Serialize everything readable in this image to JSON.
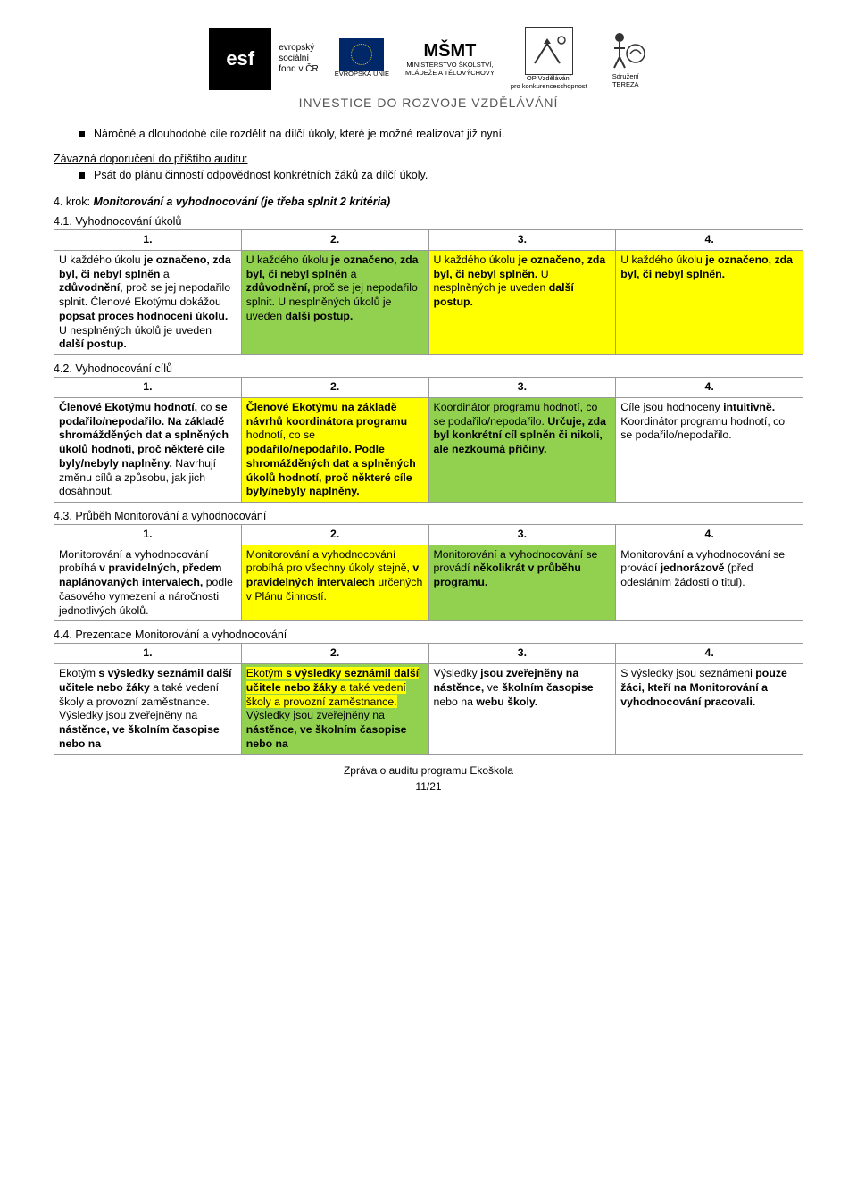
{
  "colors": {
    "green": "#92d050",
    "yellow": "#ffff00",
    "highlight_yellow": "#ffff00",
    "white": "#ffffff"
  },
  "logos": {
    "esf": {
      "mark": "esf",
      "caption": "evropský\nsociální\nfond v ČR"
    },
    "eu": {
      "caption": "EVROPSKÁ UNIE"
    },
    "msmt": {
      "mark": "MŠMT",
      "caption": "MINISTERSTVO ŠKOLSTVÍ,\nMLÁDEŽE A TĚLOVÝCHOVY"
    },
    "op": {
      "caption": "OP Vzdělávání\npro konkurenceschopnost"
    },
    "tereza": {
      "caption": "Sdružení\nTEREZA"
    }
  },
  "tagline": "INVESTICE DO ROZVOJE VZDĚLÁVÁNÍ",
  "bullet_intro": "Náročné a dlouhodobé cíle rozdělit na dílčí úkoly, které je možné realizovat již nyní.",
  "recommend_heading": "Závazná doporučení do příštího auditu:",
  "recommend_bullet": "Psát do plánu činností odpovědnost konkrétních žáků za dílčí úkoly.",
  "step4_heading": "4. krok: Monitorování a vyhodnocování (je třeba splnit 2 kritéria)",
  "tables": {
    "t41": {
      "heading": "4.1. Vyhodnocování úkolů",
      "headers": [
        "1.",
        "2.",
        "3.",
        "4."
      ],
      "row": [
        {
          "bg": "white",
          "html": "U každého úkolu <b>je označeno, zda byl, či nebyl splněn</b> a <b>zdůvodnění</b>, proč se jej nepodařilo splnit. Členové Ekotýmu dokážou <b>popsat proces hodnocení úkolu.</b> U nesplněných úkolů je uveden <b>další postup.</b>"
        },
        {
          "bg": "green",
          "html": "U každého úkolu <b>je označeno, zda byl, či nebyl splněn</b> a <b>zdůvodnění,</b> proč se jej nepodařilo splnit. U nesplněných úkolů je uveden <b>další postup.</b>"
        },
        {
          "bg": "yellow",
          "html": "U každého úkolu <b>je označeno, zda byl, či nebyl splněn.</b> U nesplněných je uveden <b>další postup.</b>"
        },
        {
          "bg": "yellow",
          "html": "U každého úkolu <b>je označeno, zda byl, či nebyl splněn.</b>"
        }
      ]
    },
    "t42": {
      "heading": "4.2. Vyhodnocování cílů",
      "headers": [
        "1.",
        "2.",
        "3.",
        "4."
      ],
      "row": [
        {
          "bg": "white",
          "html": "<b>Členové Ekotýmu hodnotí,</b> co <b>se podařilo/nepodařilo. Na základě shromážděných dat a splněných úkolů hodnotí, proč některé cíle byly/nebyly naplněny.</b> Navrhují změnu cílů a způsobu, jak jich dosáhnout."
        },
        {
          "bg": "yellow",
          "html": "<b>Členové Ekotýmu na základě návrhů koordinátora programu</b> hodnotí, co se <b>podařilo/nepodařilo. Podle shromážděných dat a splněných úkolů hodnotí, proč některé cíle byly/nebyly naplněny.</b>"
        },
        {
          "bg": "green",
          "html": "Koordinátor programu hodnotí, co se podařilo/nepodařilo. <b>Určuje, zda byl konkrétní cíl splněn či nikoli, ale nezkoumá příčiny.</b>"
        },
        {
          "bg": "white",
          "html": "Cíle jsou hodnoceny <b>intuitivně.</b> Koordinátor programu hodnotí, co se podařilo/nepodařilo."
        }
      ]
    },
    "t43": {
      "heading": "4.3. Průběh Monitorování a vyhodnocování",
      "headers": [
        "1.",
        "2.",
        "3.",
        "4."
      ],
      "row": [
        {
          "bg": "white",
          "html": "Monitorování a vyhodnocování probíhá <b>v pravidelných, předem naplánovaných intervalech,</b> podle časového vymezení a náročnosti jednotlivých úkolů."
        },
        {
          "bg": "yellow",
          "html": "Monitorování a vyhodnocování probíhá pro všechny úkoly stejně, <b>v pravidelných intervalech</b> určených v Plánu činností."
        },
        {
          "bg": "green",
          "html": "Monitorování a vyhodnocování se provádí <b>několikrát v průběhu programu.</b>"
        },
        {
          "bg": "white",
          "html": "Monitorování a vyhodnocování se provádí <b>jednorázově</b> (před odesláním žádosti o titul)."
        }
      ]
    },
    "t44": {
      "heading": "4.4. Prezentace Monitorování a vyhodnocování",
      "headers": [
        "1.",
        "2.",
        "3.",
        "4."
      ],
      "row": [
        {
          "bg": "white",
          "html": "Ekotým <b>s výsledky seznámil další učitele nebo žáky</b> a také vedení školy a provozní zaměstnance. Výsledky jsou zveřejněny na <b>nástěnce, ve školním časopise nebo na</b>"
        },
        {
          "bg": "green",
          "html": "<span class='hl-inner' style='background:#ffff00'>Ekotým <b>s výsledky seznámil další učitele nebo žáky</b> a také vedení školy a provozní zaměstnance.</span> Výsledky jsou zveřejněny na <b>nástěnce, ve školním časopise nebo na</b>"
        },
        {
          "bg": "white",
          "html": "Výsledky <b>jsou zveřejněny na nástěnce,</b> ve <b>školním časopise</b> nebo na <b>webu školy.</b>"
        },
        {
          "bg": "white",
          "html": "S výsledky jsou seznámeni <b>pouze žáci, kteří na Monitorování a vyhodnocování pracovali.</b>"
        }
      ]
    }
  },
  "footer": {
    "line": "Zpráva o auditu programu Ekoškola",
    "page": "11/21"
  }
}
